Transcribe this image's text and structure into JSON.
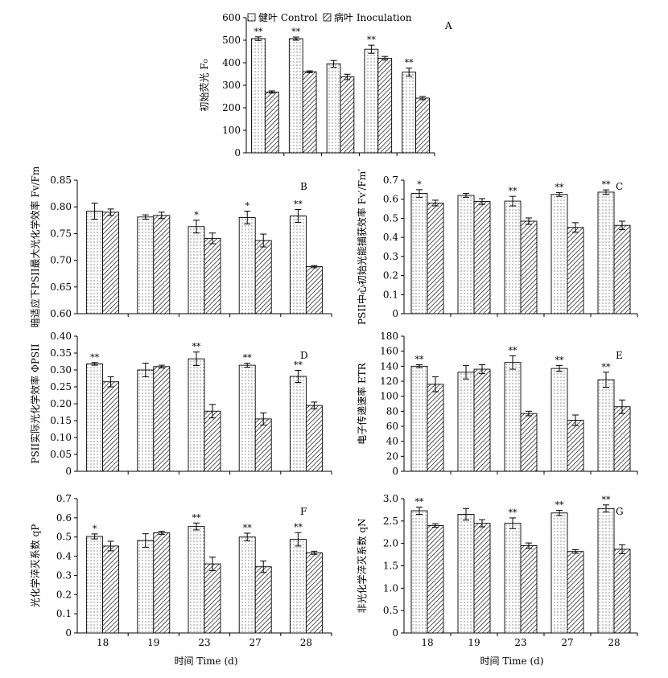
{
  "figure": {
    "xlabel": "时间 Time (d)",
    "legend": [
      {
        "name": "健叶 Control",
        "pattern": "dots"
      },
      {
        "name": "病叶 Inoculation",
        "pattern": "hatch"
      }
    ]
  },
  "chart_data": [
    {
      "id": "A",
      "type": "bar",
      "panel_label": "A",
      "ylabel": "初始荧光 F₀",
      "ylim": [
        0,
        600
      ],
      "yticks": [
        "0",
        "100",
        "200",
        "300",
        "400",
        "500",
        "600"
      ],
      "categories": [
        "18",
        "19",
        "23",
        "27",
        "28"
      ],
      "series": [
        {
          "name": "健叶 Control",
          "values": [
            507,
            507,
            395,
            460,
            358
          ],
          "errors": [
            8,
            7,
            15,
            18,
            18
          ]
        },
        {
          "name": "病叶 Inoculation",
          "values": [
            270,
            360,
            337,
            420,
            243
          ],
          "errors": [
            5,
            4,
            12,
            8,
            7
          ]
        }
      ],
      "significance": [
        "**",
        "**",
        "",
        "**",
        "**"
      ],
      "show_xticks": false
    },
    {
      "id": "B",
      "type": "bar",
      "panel_label": "B",
      "ylabel": "暗适应下PSII最大光化学效率 Fv/Fm",
      "ylim": [
        0.6,
        0.85
      ],
      "yticks": [
        "0.60",
        "0.65",
        "0.70",
        "0.75",
        "0.80",
        "0.85"
      ],
      "categories": [
        "18",
        "19",
        "23",
        "27",
        "28"
      ],
      "series": [
        {
          "name": "健叶 Control",
          "values": [
            0.792,
            0.781,
            0.763,
            0.78,
            0.783
          ],
          "errors": [
            0.015,
            0.004,
            0.012,
            0.012,
            0.012
          ]
        },
        {
          "name": "病叶 Inoculation",
          "values": [
            0.79,
            0.784,
            0.741,
            0.737,
            0.688
          ],
          "errors": [
            0.006,
            0.006,
            0.01,
            0.012,
            0.002
          ]
        }
      ],
      "significance": [
        "",
        "",
        "*",
        "*",
        "**"
      ],
      "show_xticks": false
    },
    {
      "id": "C",
      "type": "bar",
      "panel_label": "C",
      "ylabel": "PSII中心初始光能捕获效率 Fv′/Fm′",
      "ylim": [
        0,
        0.7
      ],
      "yticks": [
        "0",
        "0.1",
        "0.2",
        "0.3",
        "0.4",
        "0.5",
        "0.6",
        "0.7"
      ],
      "categories": [
        "18",
        "19",
        "23",
        "27",
        "28"
      ],
      "series": [
        {
          "name": "健叶 Control",
          "values": [
            0.63,
            0.62,
            0.59,
            0.625,
            0.637
          ],
          "errors": [
            0.02,
            0.01,
            0.025,
            0.01,
            0.012
          ]
        },
        {
          "name": "病叶 Inoculation",
          "values": [
            0.58,
            0.588,
            0.485,
            0.452,
            0.463
          ],
          "errors": [
            0.015,
            0.015,
            0.017,
            0.025,
            0.022
          ]
        }
      ],
      "significance": [
        "*",
        "",
        "**",
        "**",
        "**"
      ],
      "show_xticks": false
    },
    {
      "id": "D",
      "type": "bar",
      "panel_label": "D",
      "ylabel": "PSII实际光化学效率 ΦPSII",
      "ylim": [
        0,
        0.4
      ],
      "yticks": [
        "0",
        "0.05",
        "0.10",
        "0.15",
        "0.20",
        "0.25",
        "0.30",
        "0.35",
        "0.40"
      ],
      "categories": [
        "18",
        "19",
        "23",
        "27",
        "28"
      ],
      "series": [
        {
          "name": "健叶 Control",
          "values": [
            0.318,
            0.3,
            0.333,
            0.314,
            0.281
          ],
          "errors": [
            0.004,
            0.02,
            0.02,
            0.006,
            0.018
          ]
        },
        {
          "name": "病叶 Inoculation",
          "values": [
            0.265,
            0.31,
            0.178,
            0.155,
            0.195
          ],
          "errors": [
            0.015,
            0.004,
            0.02,
            0.018,
            0.01
          ]
        }
      ],
      "significance": [
        "**",
        "",
        "**",
        "**",
        "**"
      ],
      "show_xticks": false
    },
    {
      "id": "E",
      "type": "bar",
      "panel_label": "E",
      "ylabel": "电子传递速率 ETR",
      "ylim": [
        0,
        180
      ],
      "yticks": [
        "0",
        "20",
        "40",
        "60",
        "80",
        "100",
        "120",
        "140",
        "160",
        "180"
      ],
      "categories": [
        "18",
        "19",
        "23",
        "27",
        "28"
      ],
      "series": [
        {
          "name": "健叶 Control",
          "values": [
            140,
            132,
            145,
            137,
            122
          ],
          "errors": [
            2,
            9,
            9,
            4,
            10
          ]
        },
        {
          "name": "病叶 Inoculation",
          "values": [
            116,
            136,
            77,
            68,
            86
          ],
          "errors": [
            10,
            6,
            3,
            7,
            9
          ]
        }
      ],
      "significance": [
        "**",
        "",
        "**",
        "**",
        "**"
      ],
      "show_xticks": false
    },
    {
      "id": "F",
      "type": "bar",
      "panel_label": "F",
      "ylabel": "光化学淬灭系数 qP",
      "ylim": [
        0,
        0.7
      ],
      "yticks": [
        "0",
        "0.1",
        "0.2",
        "0.3",
        "0.4",
        "0.5",
        "0.6",
        "0.7"
      ],
      "categories": [
        "18",
        "19",
        "23",
        "27",
        "28"
      ],
      "series": [
        {
          "name": "健叶 Control",
          "values": [
            0.503,
            0.482,
            0.555,
            0.5,
            0.488
          ],
          "errors": [
            0.013,
            0.035,
            0.018,
            0.02,
            0.035
          ]
        },
        {
          "name": "病叶 Inoculation",
          "values": [
            0.453,
            0.522,
            0.36,
            0.345,
            0.418
          ],
          "errors": [
            0.025,
            0.008,
            0.035,
            0.03,
            0.008
          ]
        }
      ],
      "significance": [
        "*",
        "",
        "**",
        "**",
        "**"
      ],
      "show_xticks": true
    },
    {
      "id": "G",
      "type": "bar",
      "panel_label": "G",
      "ylabel": "非光化学淬灭系数 qN",
      "ylim": [
        0,
        3.0
      ],
      "yticks": [
        "0",
        "0.5",
        "1.0",
        "1.5",
        "2.0",
        "2.5",
        "3.0"
      ],
      "categories": [
        "18",
        "19",
        "23",
        "27",
        "28"
      ],
      "series": [
        {
          "name": "健叶 Control",
          "values": [
            2.73,
            2.65,
            2.45,
            2.68,
            2.78
          ],
          "errors": [
            0.08,
            0.13,
            0.12,
            0.06,
            0.08
          ]
        },
        {
          "name": "病叶 Inoculation",
          "values": [
            2.4,
            2.45,
            1.95,
            1.82,
            1.87
          ],
          "errors": [
            0.04,
            0.08,
            0.06,
            0.04,
            0.1
          ]
        }
      ],
      "significance": [
        "**",
        "",
        "**",
        "**",
        "**"
      ],
      "show_xticks": true
    }
  ]
}
